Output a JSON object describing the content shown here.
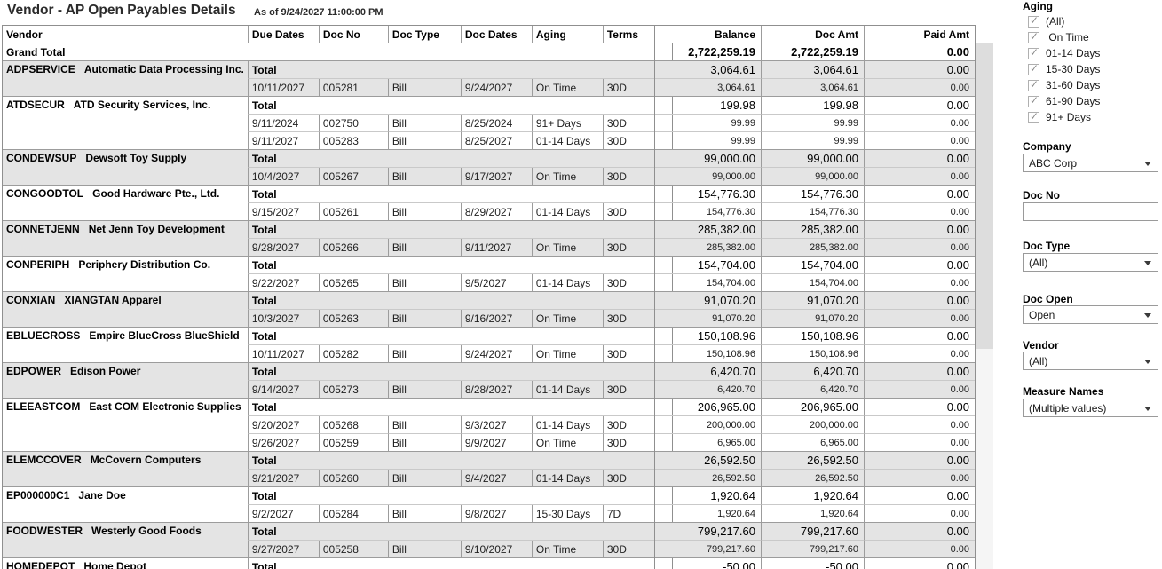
{
  "title": "Vendor - AP Open Payables Details",
  "subtitle": "As of 9/24/2027 11:00:00 PM",
  "table": {
    "left_headers": [
      "Vendor",
      "Due Dates",
      "Doc No",
      "Doc Type",
      "Doc Dates",
      "Aging",
      "Terms"
    ],
    "right_headers": [
      "Balance",
      "Doc Amt",
      "Paid Amt"
    ],
    "total_label": "Total",
    "grand_total": {
      "label": "Grand Total",
      "balance": "2,722,259.19",
      "doc_amt": "2,722,259.19",
      "paid_amt": "0.00"
    },
    "vendors": [
      {
        "code": "ADPSERVICE",
        "name": "Automatic Data Processing Inc.",
        "shaded": true,
        "total": {
          "balance": "3,064.61",
          "doc_amt": "3,064.61",
          "paid_amt": "0.00"
        },
        "docs": [
          {
            "due_date": "10/11/2027",
            "doc_no": "005281",
            "doc_type": "Bill",
            "doc_date": "9/24/2027",
            "aging": "On Time",
            "terms": "30D",
            "balance": "3,064.61",
            "doc_amt": "3,064.61",
            "paid_amt": "0.00"
          }
        ]
      },
      {
        "code": "ATDSECUR",
        "name": "ATD Security Services, Inc.",
        "shaded": false,
        "total": {
          "balance": "199.98",
          "doc_amt": "199.98",
          "paid_amt": "0.00"
        },
        "docs": [
          {
            "due_date": "9/11/2024",
            "doc_no": "002750",
            "doc_type": "Bill",
            "doc_date": "8/25/2024",
            "aging": "91+ Days",
            "terms": "30D",
            "balance": "99.99",
            "doc_amt": "99.99",
            "paid_amt": "0.00"
          },
          {
            "due_date": "9/11/2027",
            "doc_no": "005283",
            "doc_type": "Bill",
            "doc_date": "8/25/2027",
            "aging": "01-14 Days",
            "terms": "30D",
            "balance": "99.99",
            "doc_amt": "99.99",
            "paid_amt": "0.00"
          }
        ]
      },
      {
        "code": "CONDEWSUP",
        "name": "Dewsoft Toy Supply",
        "shaded": true,
        "total": {
          "balance": "99,000.00",
          "doc_amt": "99,000.00",
          "paid_amt": "0.00"
        },
        "docs": [
          {
            "due_date": "10/4/2027",
            "doc_no": "005267",
            "doc_type": "Bill",
            "doc_date": "9/17/2027",
            "aging": "On Time",
            "terms": "30D",
            "balance": "99,000.00",
            "doc_amt": "99,000.00",
            "paid_amt": "0.00"
          }
        ]
      },
      {
        "code": "CONGOODTOL",
        "name": "Good Hardware Pte., Ltd.",
        "shaded": false,
        "total": {
          "balance": "154,776.30",
          "doc_amt": "154,776.30",
          "paid_amt": "0.00"
        },
        "docs": [
          {
            "due_date": "9/15/2027",
            "doc_no": "005261",
            "doc_type": "Bill",
            "doc_date": "8/29/2027",
            "aging": "01-14 Days",
            "terms": "30D",
            "balance": "154,776.30",
            "doc_amt": "154,776.30",
            "paid_amt": "0.00"
          }
        ]
      },
      {
        "code": "CONNETJENN",
        "name": "Net Jenn Toy Development",
        "shaded": true,
        "total": {
          "balance": "285,382.00",
          "doc_amt": "285,382.00",
          "paid_amt": "0.00"
        },
        "docs": [
          {
            "due_date": "9/28/2027",
            "doc_no": "005266",
            "doc_type": "Bill",
            "doc_date": "9/11/2027",
            "aging": "On Time",
            "terms": "30D",
            "balance": "285,382.00",
            "doc_amt": "285,382.00",
            "paid_amt": "0.00"
          }
        ]
      },
      {
        "code": "CONPERIPH",
        "name": "Periphery Distribution Co.",
        "shaded": false,
        "total": {
          "balance": "154,704.00",
          "doc_amt": "154,704.00",
          "paid_amt": "0.00"
        },
        "docs": [
          {
            "due_date": "9/22/2027",
            "doc_no": "005265",
            "doc_type": "Bill",
            "doc_date": "9/5/2027",
            "aging": "01-14 Days",
            "terms": "30D",
            "balance": "154,704.00",
            "doc_amt": "154,704.00",
            "paid_amt": "0.00"
          }
        ]
      },
      {
        "code": "CONXIAN",
        "name": "XIANGTAN Apparel",
        "shaded": true,
        "total": {
          "balance": "91,070.20",
          "doc_amt": "91,070.20",
          "paid_amt": "0.00"
        },
        "docs": [
          {
            "due_date": "10/3/2027",
            "doc_no": "005263",
            "doc_type": "Bill",
            "doc_date": "9/16/2027",
            "aging": "On Time",
            "terms": "30D",
            "balance": "91,070.20",
            "doc_amt": "91,070.20",
            "paid_amt": "0.00"
          }
        ]
      },
      {
        "code": "EBLUECROSS",
        "name": "Empire BlueCross BlueShield",
        "shaded": false,
        "total": {
          "balance": "150,108.96",
          "doc_amt": "150,108.96",
          "paid_amt": "0.00"
        },
        "docs": [
          {
            "due_date": "10/11/2027",
            "doc_no": "005282",
            "doc_type": "Bill",
            "doc_date": "9/24/2027",
            "aging": "On Time",
            "terms": "30D",
            "balance": "150,108.96",
            "doc_amt": "150,108.96",
            "paid_amt": "0.00"
          }
        ]
      },
      {
        "code": "EDPOWER",
        "name": "Edison Power",
        "shaded": true,
        "total": {
          "balance": "6,420.70",
          "doc_amt": "6,420.70",
          "paid_amt": "0.00"
        },
        "docs": [
          {
            "due_date": "9/14/2027",
            "doc_no": "005273",
            "doc_type": "Bill",
            "doc_date": "8/28/2027",
            "aging": "01-14 Days",
            "terms": "30D",
            "balance": "6,420.70",
            "doc_amt": "6,420.70",
            "paid_amt": "0.00"
          }
        ]
      },
      {
        "code": "ELEEASTCOM",
        "name": "East COM Electronic Supplies",
        "shaded": false,
        "total": {
          "balance": "206,965.00",
          "doc_amt": "206,965.00",
          "paid_amt": "0.00"
        },
        "docs": [
          {
            "due_date": "9/20/2027",
            "doc_no": "005268",
            "doc_type": "Bill",
            "doc_date": "9/3/2027",
            "aging": "01-14 Days",
            "terms": "30D",
            "balance": "200,000.00",
            "doc_amt": "200,000.00",
            "paid_amt": "0.00"
          },
          {
            "due_date": "9/26/2027",
            "doc_no": "005259",
            "doc_type": "Bill",
            "doc_date": "9/9/2027",
            "aging": "On Time",
            "terms": "30D",
            "balance": "6,965.00",
            "doc_amt": "6,965.00",
            "paid_amt": "0.00"
          }
        ]
      },
      {
        "code": "ELEMCCOVER",
        "name": "McCovern Computers",
        "shaded": true,
        "total": {
          "balance": "26,592.50",
          "doc_amt": "26,592.50",
          "paid_amt": "0.00"
        },
        "docs": [
          {
            "due_date": "9/21/2027",
            "doc_no": "005260",
            "doc_type": "Bill",
            "doc_date": "9/4/2027",
            "aging": "01-14 Days",
            "terms": "30D",
            "balance": "26,592.50",
            "doc_amt": "26,592.50",
            "paid_amt": "0.00"
          }
        ]
      },
      {
        "code": "EP000000C1",
        "name": "Jane Doe",
        "shaded": false,
        "total": {
          "balance": "1,920.64",
          "doc_amt": "1,920.64",
          "paid_amt": "0.00"
        },
        "docs": [
          {
            "due_date": "9/2/2027",
            "doc_no": "005284",
            "doc_type": "Bill",
            "doc_date": "9/8/2027",
            "aging": "15-30 Days",
            "terms": "7D",
            "balance": "1,920.64",
            "doc_amt": "1,920.64",
            "paid_amt": "0.00"
          }
        ]
      },
      {
        "code": "FOODWESTER",
        "name": "Westerly Good Foods",
        "shaded": true,
        "total": {
          "balance": "799,217.60",
          "doc_amt": "799,217.60",
          "paid_amt": "0.00"
        },
        "docs": [
          {
            "due_date": "9/27/2027",
            "doc_no": "005258",
            "doc_type": "Bill",
            "doc_date": "9/10/2027",
            "aging": "On Time",
            "terms": "30D",
            "balance": "799,217.60",
            "doc_amt": "799,217.60",
            "paid_amt": "0.00"
          }
        ]
      },
      {
        "code": "HOMEDEPOT",
        "name": "Home Depot",
        "shaded": false,
        "total": {
          "balance": "-50.00",
          "doc_amt": "-50.00",
          "paid_amt": "0.00"
        },
        "docs": []
      }
    ]
  },
  "sidebar": {
    "aging": {
      "label": "Aging",
      "options": [
        {
          "label": "(All)",
          "checked": true
        },
        {
          "label": " On Time",
          "checked": true
        },
        {
          "label": "01-14 Days",
          "checked": true
        },
        {
          "label": "15-30 Days",
          "checked": true
        },
        {
          "label": "31-60 Days",
          "checked": true
        },
        {
          "label": "61-90 Days",
          "checked": true
        },
        {
          "label": "91+ Days",
          "checked": true
        }
      ]
    },
    "company": {
      "label": "Company",
      "value": "ABC Corp"
    },
    "doc_no": {
      "label": "Doc No",
      "value": ""
    },
    "doc_type": {
      "label": "Doc Type",
      "value": "(All)"
    },
    "doc_open": {
      "label": "Doc Open",
      "value": "Open"
    },
    "vendor": {
      "label": "Vendor",
      "value": "(All)"
    },
    "measure_names": {
      "label": "Measure Names",
      "value": "(Multiple values)"
    }
  },
  "colors": {
    "band_gray": "#e4e4e4",
    "border_dark": "#8f8f8f",
    "border_mid": "#9c9c9c",
    "border_light": "#c9c9c9",
    "scroll_thumb": "#dddddd",
    "scroll_track": "#f5f5f5"
  }
}
